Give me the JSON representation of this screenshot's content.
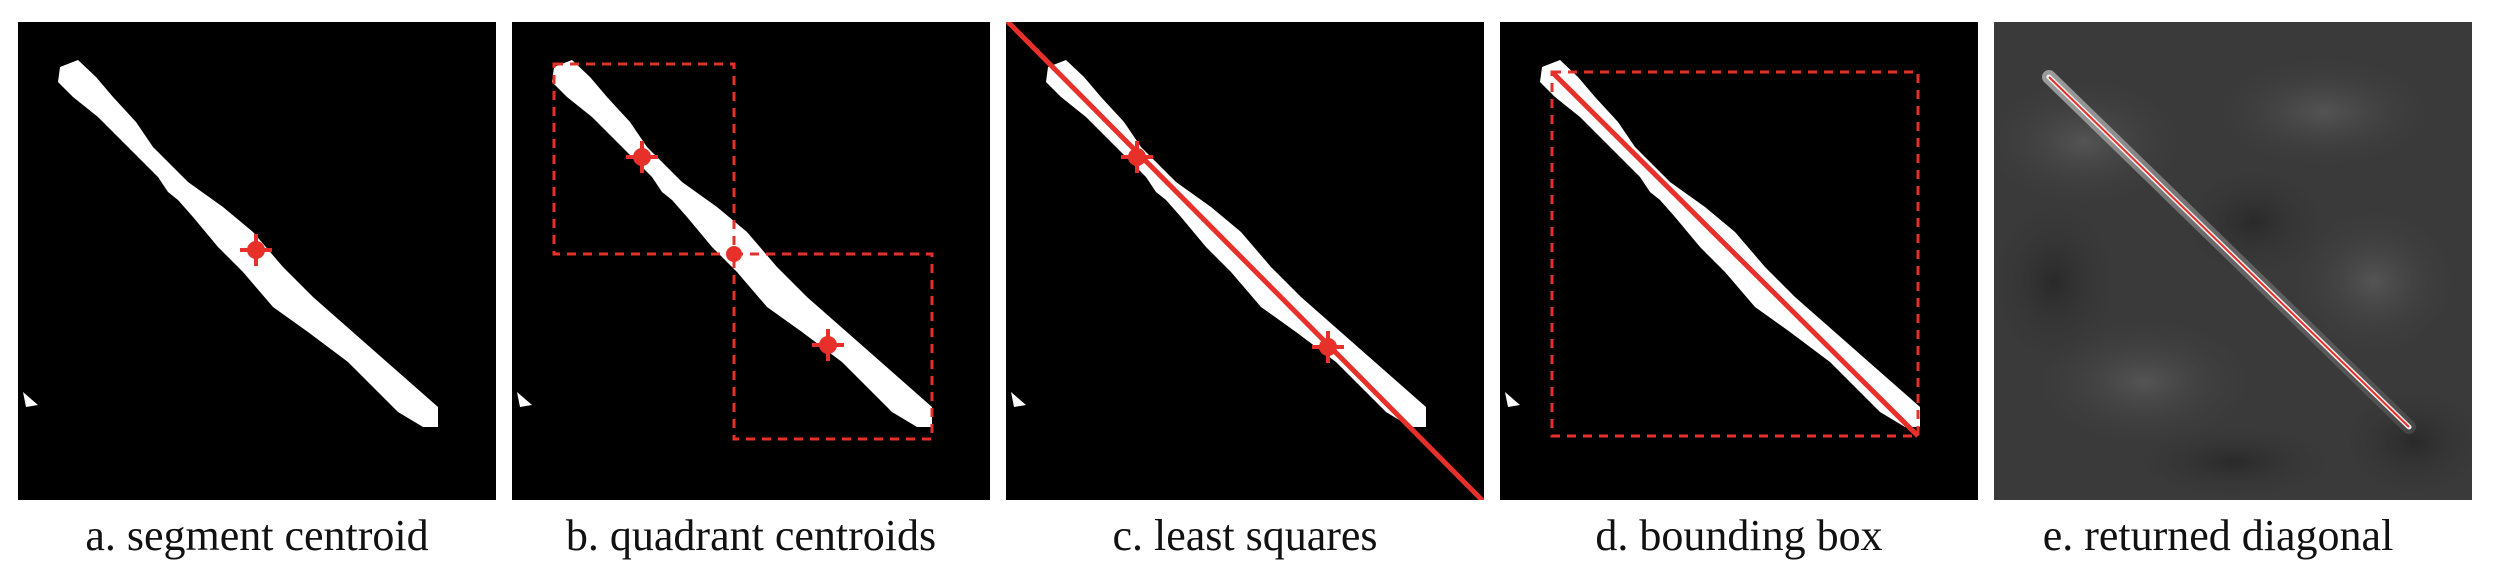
{
  "panels": [
    {
      "caption": "a. segment centroid"
    },
    {
      "caption": "b. quadrant centroids"
    },
    {
      "caption": "c. least squares"
    },
    {
      "caption": "d. bounding box"
    },
    {
      "caption": "e. returned diagonal"
    }
  ],
  "colors": {
    "annotation_red": "#e8302a",
    "segment_white": "#ffffff",
    "panel_background": "#000000",
    "heatmap_background": "#3a3a3a"
  }
}
